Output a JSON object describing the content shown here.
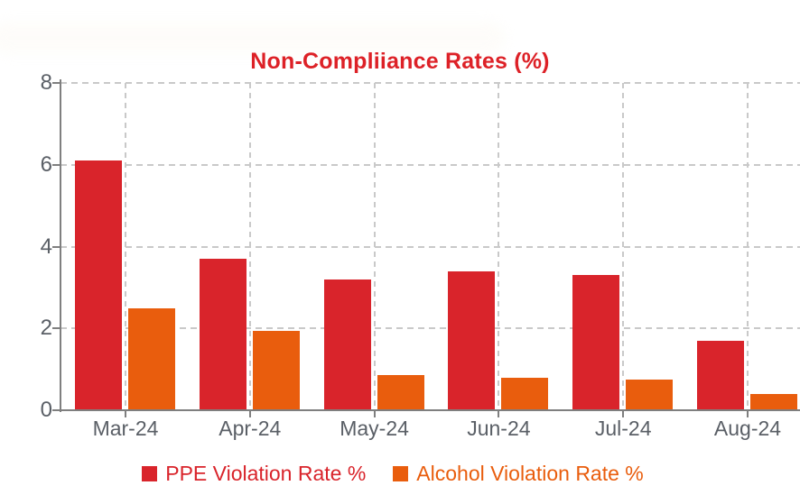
{
  "chart": {
    "title": "Non-Compliiance Rates (%)",
    "title_color": "#dd2127"
  },
  "chart_data": {
    "type": "bar",
    "title": "Non-Compliiance Rates (%)",
    "categories": [
      "Mar-24",
      "Apr-24",
      "May-24",
      "Jun-24",
      "Jul-24",
      "Aug-24"
    ],
    "series": [
      {
        "name": "PPE Violation Rate %",
        "color": "#d9242b",
        "values": [
          6.1,
          3.7,
          3.2,
          3.4,
          3.3,
          1.7
        ]
      },
      {
        "name": "Alcohol Violation Rate %",
        "color": "#e95d0d",
        "values": [
          2.5,
          1.95,
          0.85,
          0.8,
          0.75,
          0.4
        ]
      }
    ],
    "xlabel": "",
    "ylabel": "",
    "ylim": [
      0,
      8
    ],
    "yticks": [
      0,
      2,
      4,
      6,
      8
    ],
    "grid": "dashed horizontal at y ticks and dashed vertical at category centers",
    "legend_position": "bottom",
    "axis_color": "#7f7f7f",
    "gridline_color": "#c9c9c9",
    "tick_label_color": "#5a5f66"
  }
}
